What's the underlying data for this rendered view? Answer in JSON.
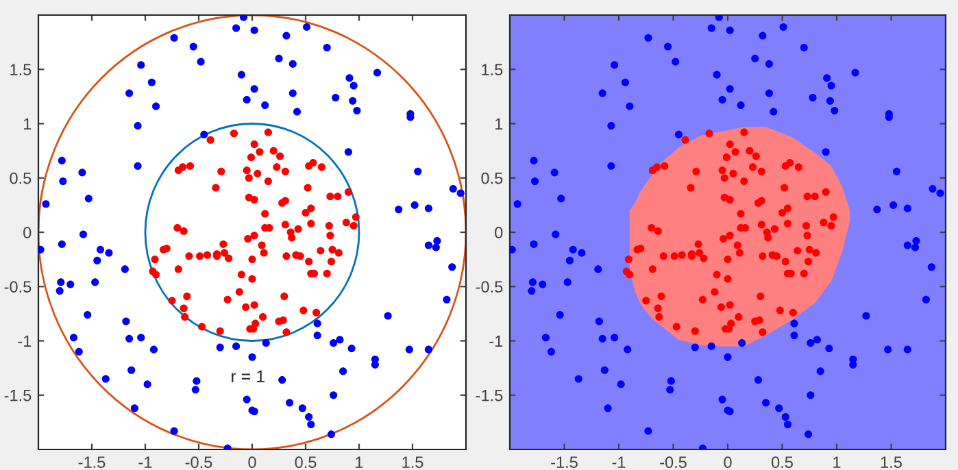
{
  "chart_data": [
    {
      "type": "scatter",
      "xlim": [
        -2,
        2
      ],
      "ylim": [
        -2,
        2
      ],
      "xticks": [
        -1.5,
        -1,
        -0.5,
        0,
        0.5,
        1,
        1.5
      ],
      "yticks": [
        -1.5,
        -1,
        -0.5,
        0,
        0.5,
        1,
        1.5
      ],
      "marker": "circle",
      "annotations": [
        "r = 1"
      ],
      "series": [
        {
          "color": "#0000ff",
          "x": [
            -0.08,
            -0.15,
            0.02,
            -0.73,
            0.32,
            0.51,
            -0.55,
            0.7,
            -0.48,
            0.25,
            0.38,
            -1.04,
            -0.1,
            1.17,
            -0.94,
            0.91,
            0.95,
            0.02,
            -1.15,
            0.38,
            0.78,
            -0.05,
            0.94,
            0.12,
            -0.9,
            0.98,
            0.42,
            1.48,
            1.48,
            -1.07,
            -0.45,
            -1.78,
            -1.07,
            0.9,
            -1.59,
            1.55,
            -1.77,
            -1.53,
            -1.93,
            1.88,
            1.95,
            1.37,
            1.52,
            1.65,
            -1.98,
            -1.78,
            -1.58,
            -1.79,
            -1.8,
            -1.7,
            -1.47,
            -1.45,
            -1.42,
            -1.34,
            -1.19,
            -1.54,
            -1.18,
            -1.67,
            -1.15,
            -1.04,
            -1.62,
            -0.92,
            -1.13,
            -1.37,
            -0.98,
            -0.52,
            -0.53,
            -0.73,
            -1.1,
            -0.3,
            -0.15,
            0.0,
            0.13,
            -0.23,
            -0.05,
            0.0,
            0.02,
            0.28,
            0.35,
            0.47,
            0.53,
            0.55,
            0.74,
            0.76,
            0.61,
            0.61,
            0.76,
            0.82,
            0.85,
            0.93,
            1.27,
            1.47,
            1.65,
            1.15,
            1.15,
            1.65,
            1.72,
            1.73,
            1.87,
            1.82
          ],
          "values": [
            1.98,
            1.88,
            1.86,
            1.79,
            1.81,
            1.89,
            1.71,
            1.7,
            1.57,
            1.6,
            1.55,
            1.54,
            1.45,
            1.47,
            1.38,
            1.42,
            1.35,
            1.32,
            1.28,
            1.28,
            1.24,
            1.22,
            1.21,
            1.17,
            1.16,
            1.12,
            1.11,
            1.09,
            1.06,
            0.98,
            0.9,
            0.66,
            0.61,
            0.74,
            0.55,
            0.56,
            0.47,
            0.31,
            0.26,
            0.4,
            0.36,
            0.21,
            0.25,
            0.22,
            -0.16,
            -0.11,
            -0.02,
            -0.46,
            -0.54,
            -0.48,
            -0.46,
            -0.26,
            -0.16,
            -0.19,
            -0.34,
            -0.76,
            -0.82,
            -0.97,
            -0.98,
            -0.97,
            -1.1,
            -1.08,
            -1.27,
            -1.35,
            -1.4,
            -1.37,
            -1.45,
            -1.83,
            -1.62,
            -1.06,
            -1.05,
            -1.15,
            -1.02,
            -1.99,
            -1.54,
            -1.64,
            -1.65,
            -1.36,
            -1.57,
            -1.62,
            -1.7,
            -1.77,
            -1.86,
            -1.5,
            -0.84,
            -0.95,
            -1.02,
            -0.99,
            -1.28,
            -1.07,
            -0.77,
            -1.08,
            -1.08,
            -1.17,
            -1.22,
            -0.12,
            -0.14,
            -0.08,
            -0.32,
            -0.62
          ]
        },
        {
          "color": "#ff0000",
          "x": [
            -0.39,
            -0.17,
            0.15,
            0.02,
            0.2,
            0.07,
            0.26,
            -0.01,
            -0.69,
            -0.65,
            -0.58,
            -0.29,
            -0.05,
            0.53,
            0.57,
            0.65,
            0.23,
            0.31,
            -0.03,
            0.05,
            0.15,
            -0.34,
            0.52,
            -0.03,
            0.02,
            0.73,
            0.8,
            0.9,
            0.12,
            0.31,
            0.28,
            0.5,
            0.55,
            0.97,
            0.31,
            -0.7,
            -0.64,
            0.02,
            -0.04,
            0.12,
            0.16,
            0.36,
            0.37,
            0.43,
            0.55,
            0.72,
            0.73,
            0.88,
            0.95,
            -0.83,
            -0.8,
            -0.59,
            -0.49,
            -0.42,
            -0.33,
            -0.33,
            -0.27,
            -0.26,
            -0.22,
            0.09,
            0.11,
            0.0,
            0.32,
            0.41,
            0.45,
            0.53,
            0.64,
            0.75,
            0.81,
            0.74,
            -0.91,
            -0.93,
            -0.9,
            -0.69,
            -0.1,
            0.0,
            0.55,
            0.58,
            0.7,
            -0.61,
            -0.75,
            -0.64,
            -0.63,
            -0.47,
            -0.3,
            -0.23,
            -0.12,
            -0.06,
            0.02,
            0.1,
            -0.02,
            0.01,
            0.03,
            0.3,
            0.25,
            0.29,
            0.32,
            0.48,
            0.6
          ],
          "values": [
            0.85,
            0.91,
            0.92,
            0.81,
            0.75,
            0.74,
            0.7,
            0.69,
            0.57,
            0.6,
            0.61,
            0.56,
            0.57,
            0.61,
            0.64,
            0.6,
            0.6,
            0.56,
            0.5,
            0.54,
            0.47,
            0.41,
            0.41,
            0.32,
            0.3,
            0.33,
            0.33,
            0.37,
            0.17,
            0.29,
            0.27,
            0.18,
            0.22,
            0.14,
            0.07,
            0.04,
            0.01,
            -0.03,
            -0.06,
            0.04,
            0.04,
            0.0,
            -0.05,
            0.03,
            0.08,
            0.06,
            -0.03,
            0.09,
            0.06,
            -0.16,
            -0.15,
            -0.22,
            -0.22,
            -0.21,
            -0.2,
            -0.22,
            -0.11,
            -0.19,
            -0.24,
            -0.12,
            -0.19,
            -0.25,
            -0.22,
            -0.21,
            -0.22,
            -0.27,
            -0.17,
            -0.16,
            -0.19,
            -0.27,
            -0.25,
            -0.36,
            -0.39,
            -0.34,
            -0.39,
            -0.43,
            -0.38,
            -0.38,
            -0.38,
            -0.59,
            -0.63,
            -0.7,
            -0.78,
            -0.87,
            -0.91,
            -0.62,
            -0.55,
            -0.69,
            -0.67,
            -0.78,
            -0.89,
            -0.89,
            -0.84,
            -0.59,
            -0.82,
            -0.81,
            -0.92,
            -0.72,
            -0.74
          ]
        }
      ]
    },
    {
      "type": "scatter",
      "xlim": [
        -2,
        2
      ],
      "ylim": [
        -2,
        2
      ],
      "xticks": [
        -1.5,
        -1,
        -0.5,
        0,
        0.5,
        1,
        1.5
      ],
      "yticks": [
        -1.5,
        -1,
        -0.5,
        0,
        0.5,
        1,
        1.5
      ],
      "marker": "circle",
      "series": [
        {
          "color": "#0000ff",
          "x": [
            -0.08,
            -0.15,
            0.02,
            -0.73,
            0.32,
            0.51,
            -0.55,
            0.7,
            -0.48,
            0.25,
            0.38,
            -1.04,
            -0.1,
            1.17,
            -0.94,
            0.91,
            0.95,
            0.02,
            -1.15,
            0.38,
            0.78,
            -0.05,
            0.94,
            0.12,
            -0.9,
            0.98,
            0.42,
            1.48,
            1.48,
            -1.07,
            -0.45,
            -1.78,
            -1.07,
            0.9,
            -1.59,
            1.55,
            -1.77,
            -1.53,
            -1.93,
            1.88,
            1.95,
            1.37,
            1.52,
            1.65,
            -1.98,
            -1.78,
            -1.58,
            -1.79,
            -1.8,
            -1.7,
            -1.47,
            -1.45,
            -1.42,
            -1.34,
            -1.19,
            -1.54,
            -1.18,
            -1.67,
            -1.15,
            -1.04,
            -1.62,
            -0.92,
            -1.13,
            -1.37,
            -0.98,
            -0.52,
            -0.53,
            -0.73,
            -1.1,
            -0.3,
            -0.15,
            0.0,
            0.13,
            -0.23,
            -0.05,
            0.0,
            0.02,
            0.28,
            0.35,
            0.47,
            0.53,
            0.55,
            0.74,
            0.76,
            0.61,
            0.61,
            0.76,
            0.82,
            0.85,
            0.93,
            1.27,
            1.47,
            1.65,
            1.15,
            1.15,
            1.65,
            1.72,
            1.73,
            1.87,
            1.82
          ],
          "values": [
            1.98,
            1.88,
            1.86,
            1.79,
            1.81,
            1.89,
            1.71,
            1.7,
            1.57,
            1.6,
            1.55,
            1.54,
            1.45,
            1.47,
            1.38,
            1.42,
            1.35,
            1.32,
            1.28,
            1.28,
            1.24,
            1.22,
            1.21,
            1.17,
            1.16,
            1.12,
            1.11,
            1.09,
            1.06,
            0.98,
            0.9,
            0.66,
            0.61,
            0.74,
            0.55,
            0.56,
            0.47,
            0.31,
            0.26,
            0.4,
            0.36,
            0.21,
            0.25,
            0.22,
            -0.16,
            -0.11,
            -0.02,
            -0.46,
            -0.54,
            -0.48,
            -0.46,
            -0.26,
            -0.16,
            -0.19,
            -0.34,
            -0.76,
            -0.82,
            -0.97,
            -0.98,
            -0.97,
            -1.1,
            -1.08,
            -1.27,
            -1.35,
            -1.4,
            -1.37,
            -1.45,
            -1.83,
            -1.62,
            -1.06,
            -1.05,
            -1.15,
            -1.02,
            -1.99,
            -1.54,
            -1.64,
            -1.65,
            -1.36,
            -1.57,
            -1.62,
            -1.7,
            -1.77,
            -1.86,
            -1.5,
            -0.84,
            -0.95,
            -1.02,
            -0.99,
            -1.28,
            -1.07,
            -0.77,
            -1.08,
            -1.08,
            -1.17,
            -1.22,
            -0.12,
            -0.14,
            -0.08,
            -0.32,
            -0.62
          ]
        },
        {
          "color": "#ff0000",
          "x": [
            -0.39,
            -0.17,
            0.15,
            0.02,
            0.2,
            0.07,
            0.26,
            -0.01,
            -0.69,
            -0.65,
            -0.58,
            -0.29,
            -0.05,
            0.53,
            0.57,
            0.65,
            0.23,
            0.31,
            -0.03,
            0.05,
            0.15,
            -0.34,
            0.52,
            -0.03,
            0.02,
            0.73,
            0.8,
            0.9,
            0.12,
            0.31,
            0.28,
            0.5,
            0.55,
            0.97,
            0.31,
            -0.7,
            -0.64,
            0.02,
            -0.04,
            0.12,
            0.16,
            0.36,
            0.37,
            0.43,
            0.55,
            0.72,
            0.73,
            0.88,
            0.95,
            -0.83,
            -0.8,
            -0.59,
            -0.49,
            -0.42,
            -0.33,
            -0.33,
            -0.27,
            -0.26,
            -0.22,
            0.09,
            0.11,
            0.0,
            0.32,
            0.41,
            0.45,
            0.53,
            0.64,
            0.75,
            0.81,
            0.74,
            -0.91,
            -0.93,
            -0.9,
            -0.69,
            -0.1,
            0.0,
            0.55,
            0.58,
            0.7,
            -0.61,
            -0.75,
            -0.64,
            -0.63,
            -0.47,
            -0.3,
            -0.23,
            -0.12,
            -0.06,
            0.02,
            0.1,
            -0.02,
            0.01,
            0.03,
            0.3,
            0.25,
            0.29,
            0.32,
            0.48,
            0.6
          ],
          "values": [
            0.85,
            0.91,
            0.92,
            0.81,
            0.75,
            0.74,
            0.7,
            0.69,
            0.57,
            0.6,
            0.61,
            0.56,
            0.57,
            0.61,
            0.64,
            0.6,
            0.6,
            0.56,
            0.5,
            0.54,
            0.47,
            0.41,
            0.41,
            0.32,
            0.3,
            0.33,
            0.33,
            0.37,
            0.17,
            0.29,
            0.27,
            0.18,
            0.22,
            0.14,
            0.07,
            0.04,
            0.01,
            -0.03,
            -0.06,
            0.04,
            0.04,
            0.0,
            -0.05,
            0.03,
            0.08,
            0.06,
            -0.03,
            0.09,
            0.06,
            -0.16,
            -0.15,
            -0.22,
            -0.22,
            -0.21,
            -0.2,
            -0.22,
            -0.11,
            -0.19,
            -0.24,
            -0.12,
            -0.19,
            -0.25,
            -0.22,
            -0.21,
            -0.22,
            -0.27,
            -0.17,
            -0.16,
            -0.19,
            -0.27,
            -0.25,
            -0.36,
            -0.39,
            -0.34,
            -0.39,
            -0.43,
            -0.38,
            -0.38,
            -0.38,
            -0.59,
            -0.63,
            -0.7,
            -0.78,
            -0.87,
            -0.91,
            -0.62,
            -0.55,
            -0.69,
            -0.67,
            -0.78,
            -0.89,
            -0.89,
            -0.84,
            -0.59,
            -0.82,
            -0.81,
            -0.92,
            -0.72,
            -0.74
          ]
        }
      ]
    }
  ]
}
